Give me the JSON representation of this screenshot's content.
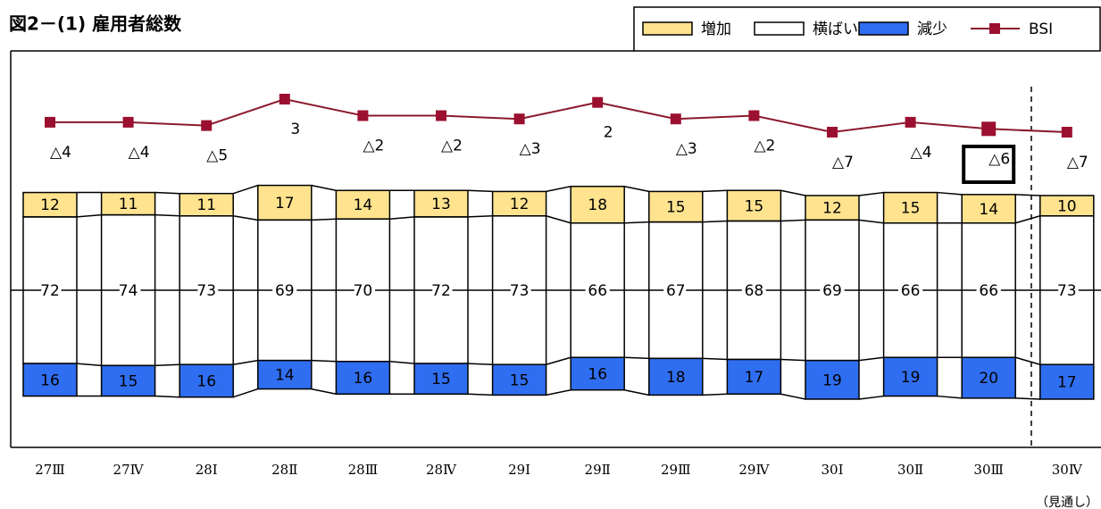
{
  "chart_data": {
    "type": "combo",
    "title": "図2－(1) 雇用者総数",
    "categories": [
      "27Ⅲ",
      "27Ⅳ",
      "28Ⅰ",
      "28Ⅱ",
      "28Ⅲ",
      "28Ⅳ",
      "29Ⅰ",
      "29Ⅱ",
      "29Ⅲ",
      "29Ⅳ",
      "30Ⅰ",
      "30Ⅱ",
      "30Ⅲ",
      "30Ⅳ"
    ],
    "series": [
      {
        "name": "増加",
        "color": "#ffe38f",
        "values": [
          12,
          11,
          11,
          17,
          14,
          13,
          12,
          18,
          15,
          15,
          12,
          15,
          14,
          10
        ]
      },
      {
        "name": "横ばい",
        "color": "#ffffff",
        "values": [
          72,
          74,
          73,
          69,
          70,
          72,
          73,
          66,
          67,
          68,
          69,
          66,
          66,
          73
        ]
      },
      {
        "name": "減少",
        "color": "#2f6ef0",
        "values": [
          16,
          15,
          16,
          14,
          16,
          15,
          15,
          16,
          18,
          17,
          19,
          19,
          20,
          17
        ]
      },
      {
        "name": "BSI",
        "color": "#8b1a2b",
        "values": [
          -4,
          -4,
          -5,
          3,
          -2,
          -2,
          -3,
          2,
          -3,
          -2,
          -7,
          -4,
          -6,
          -7
        ],
        "value_labels": [
          "△4",
          "△4",
          "△5",
          "3",
          "△2",
          "△2",
          "△3",
          "2",
          "△3",
          "△2",
          "△7",
          "△4",
          "△6",
          "△7"
        ]
      }
    ],
    "forecast_note": "（見通し）"
  }
}
